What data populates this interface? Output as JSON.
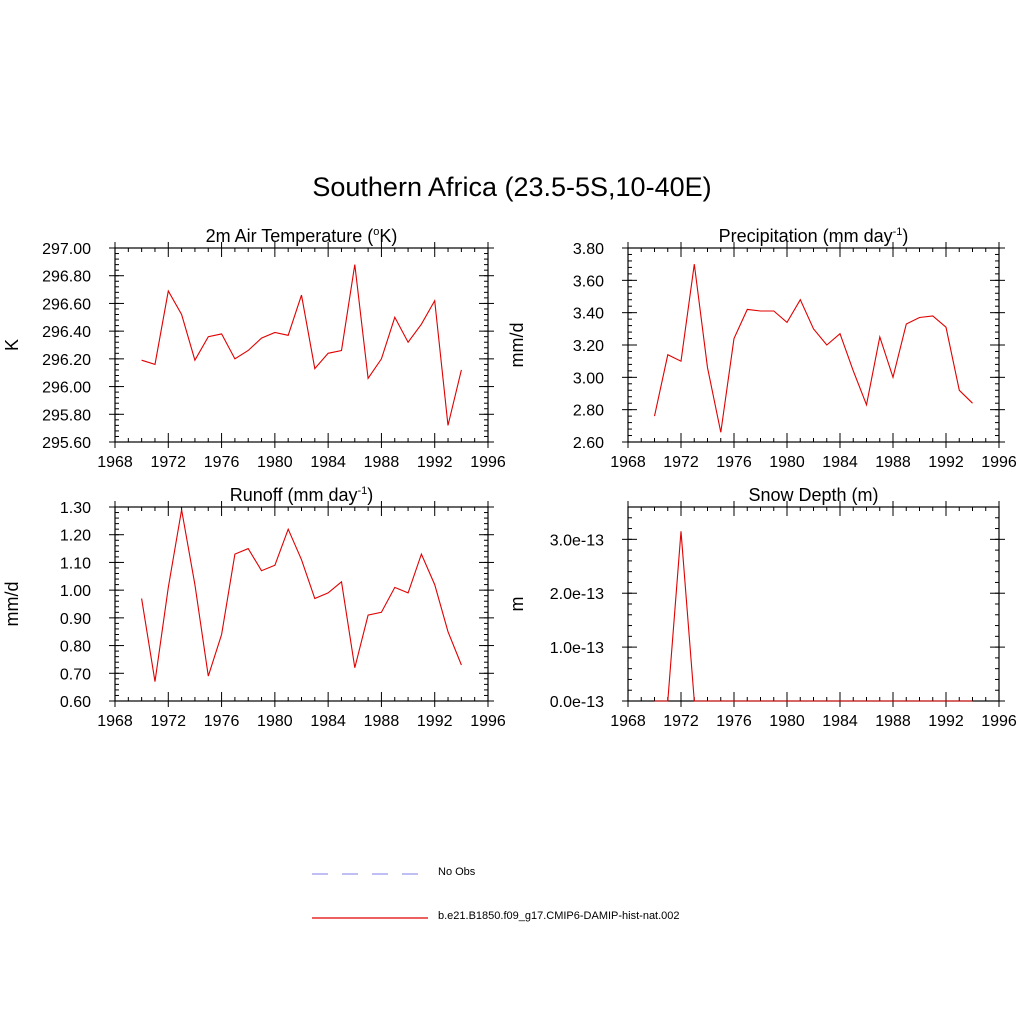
{
  "title": "Southern Africa (23.5-5S,10-40E)",
  "colors": {
    "model": "#e00000",
    "obs": "#9999ee",
    "axis": "#000000"
  },
  "legend": [
    {
      "label": "No Obs",
      "style": "dashed",
      "color": "#9999ee"
    },
    {
      "label": "b.e21.B1850.f09_g17.CMIP6-DAMIP-hist-nat.002",
      "style": "solid",
      "color": "#e00000"
    }
  ],
  "chart_data": [
    {
      "type": "line",
      "title": "2m Air Temperature (",
      "title_sup": "o",
      "title_tail": "K)",
      "ylabel": "K",
      "xlim": [
        1968,
        1996
      ],
      "ylim": [
        295.6,
        297.0
      ],
      "xticks": [
        "1968",
        "1972",
        "1976",
        "1980",
        "1984",
        "1988",
        "1992",
        "1996"
      ],
      "yticks": [
        "295.60",
        "295.80",
        "296.00",
        "296.20",
        "296.40",
        "296.60",
        "296.80",
        "297.00"
      ],
      "x": [
        1970,
        1971,
        1972,
        1973,
        1974,
        1975,
        1976,
        1977,
        1978,
        1979,
        1980,
        1981,
        1982,
        1983,
        1984,
        1985,
        1986,
        1987,
        1988,
        1989,
        1990,
        1991,
        1992,
        1993,
        1994
      ],
      "series": [
        {
          "values": [
            296.19,
            296.16,
            296.69,
            296.52,
            296.19,
            296.36,
            296.38,
            296.2,
            296.26,
            296.35,
            296.39,
            296.37,
            296.66,
            296.13,
            296.24,
            296.26,
            296.88,
            296.06,
            296.2,
            296.5,
            296.32,
            296.45,
            296.62,
            295.72,
            296.12
          ]
        }
      ]
    },
    {
      "type": "line",
      "title": "Precipitation (mm day",
      "title_sup": "-1",
      "title_tail": ")",
      "ylabel": "mm/d",
      "xlim": [
        1968,
        1996
      ],
      "ylim": [
        2.6,
        3.8
      ],
      "xticks": [
        "1968",
        "1972",
        "1976",
        "1980",
        "1984",
        "1988",
        "1992",
        "1996"
      ],
      "yticks": [
        "2.60",
        "2.80",
        "3.00",
        "3.20",
        "3.40",
        "3.60",
        "3.80"
      ],
      "x": [
        1970,
        1971,
        1972,
        1973,
        1974,
        1975,
        1976,
        1977,
        1978,
        1979,
        1980,
        1981,
        1982,
        1983,
        1984,
        1985,
        1986,
        1987,
        1988,
        1989,
        1990,
        1991,
        1992,
        1993,
        1994
      ],
      "series": [
        {
          "values": [
            2.76,
            3.14,
            3.1,
            3.7,
            3.06,
            2.66,
            3.24,
            3.42,
            3.41,
            3.41,
            3.34,
            3.48,
            3.3,
            3.2,
            3.27,
            3.04,
            2.83,
            3.25,
            3.0,
            3.33,
            3.37,
            3.38,
            3.31,
            2.92,
            2.84
          ]
        }
      ]
    },
    {
      "type": "line",
      "title": "Runoff (mm day",
      "title_sup": "-1",
      "title_tail": ")",
      "ylabel": "mm/d",
      "xlim": [
        1968,
        1996
      ],
      "ylim": [
        0.6,
        1.3
      ],
      "xticks": [
        "1968",
        "1972",
        "1976",
        "1980",
        "1984",
        "1988",
        "1992",
        "1996"
      ],
      "yticks": [
        "0.60",
        "0.70",
        "0.80",
        "0.90",
        "1.00",
        "1.10",
        "1.20",
        "1.30"
      ],
      "x": [
        1970,
        1971,
        1972,
        1973,
        1974,
        1975,
        1976,
        1977,
        1978,
        1979,
        1980,
        1981,
        1982,
        1983,
        1984,
        1985,
        1986,
        1987,
        1988,
        1989,
        1990,
        1991,
        1992,
        1993,
        1994
      ],
      "series": [
        {
          "values": [
            0.97,
            0.67,
            1.01,
            1.29,
            1.02,
            0.69,
            0.84,
            1.13,
            1.15,
            1.07,
            1.09,
            1.22,
            1.11,
            0.97,
            0.99,
            1.03,
            0.72,
            0.91,
            0.92,
            1.01,
            0.99,
            1.13,
            1.02,
            0.85,
            0.73
          ]
        }
      ]
    },
    {
      "type": "line",
      "title": "Snow Depth (m)",
      "title_sup": "",
      "title_tail": "",
      "ylabel": "m",
      "xlim": [
        1968,
        1996
      ],
      "ylim": [
        0,
        3.6e-13
      ],
      "xticks": [
        "1968",
        "1972",
        "1976",
        "1980",
        "1984",
        "1988",
        "1992",
        "1996"
      ],
      "yticks": [
        "0.0e-13",
        "1.0e-13",
        "2.0e-13",
        "3.0e-13"
      ],
      "ytick_values": [
        0,
        1e-13,
        2e-13,
        3e-13
      ],
      "x": [
        1970,
        1971,
        1972,
        1973,
        1974,
        1975,
        1976,
        1977,
        1978,
        1979,
        1980,
        1981,
        1982,
        1983,
        1984,
        1985,
        1986,
        1987,
        1988,
        1989,
        1990,
        1991,
        1992,
        1993,
        1994
      ],
      "series": [
        {
          "values": [
            0,
            0,
            3.15e-13,
            0,
            0,
            0,
            0,
            0,
            0,
            0,
            0,
            0,
            0,
            0,
            0,
            0,
            0,
            0,
            0,
            0,
            0,
            0,
            0,
            0,
            0
          ]
        }
      ]
    }
  ]
}
